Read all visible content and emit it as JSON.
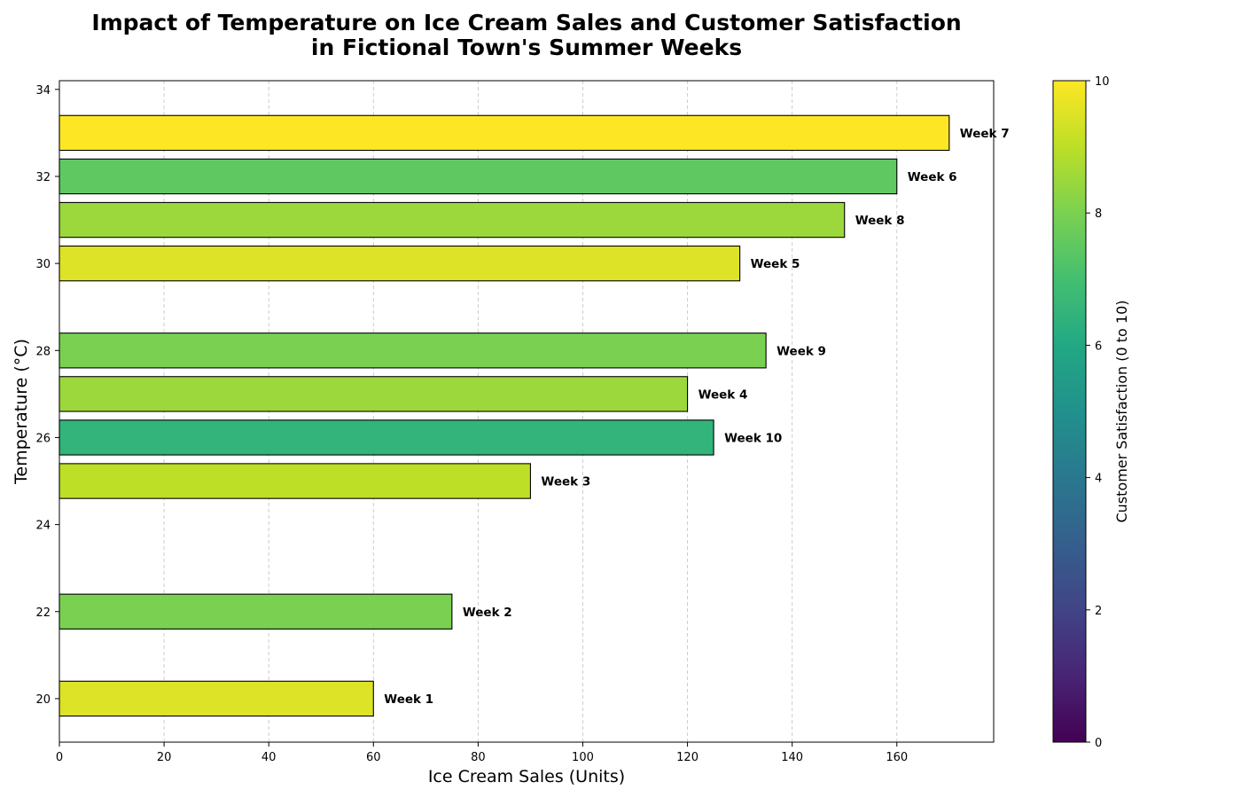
{
  "chart_data": {
    "type": "bar",
    "orientation": "horizontal",
    "title": [
      "Impact of Temperature on Ice Cream Sales and Customer Satisfaction",
      "in Fictional Town's Summer Weeks"
    ],
    "xlabel": "Ice Cream Sales (Units)",
    "ylabel": "Temperature (°C)",
    "xlim": [
      0,
      178.5
    ],
    "ylim": [
      19,
      34.2
    ],
    "xticks": [
      0,
      20,
      40,
      60,
      80,
      100,
      120,
      140,
      160
    ],
    "yticks": [
      20,
      22,
      24,
      26,
      28,
      30,
      32,
      34
    ],
    "grid": "x-dashed",
    "colorbar": {
      "label": "Customer Satisfaction (0 to 10)",
      "range": [
        0,
        10
      ],
      "ticks": [
        0,
        2,
        4,
        6,
        8,
        10
      ],
      "colormap": "viridis"
    },
    "bars": [
      {
        "label": "Week 1",
        "temperature": 20,
        "sales": 60,
        "satisfaction": 9.5
      },
      {
        "label": "Week 2",
        "temperature": 22,
        "sales": 75,
        "satisfaction": 8
      },
      {
        "label": "Week 3",
        "temperature": 25,
        "sales": 90,
        "satisfaction": 9
      },
      {
        "label": "Week 10",
        "temperature": 26,
        "sales": 125,
        "satisfaction": 6.5
      },
      {
        "label": "Week 4",
        "temperature": 27,
        "sales": 120,
        "satisfaction": 8.5
      },
      {
        "label": "Week 9",
        "temperature": 28,
        "sales": 135,
        "satisfaction": 8
      },
      {
        "label": "Week 5",
        "temperature": 30,
        "sales": 130,
        "satisfaction": 9.5
      },
      {
        "label": "Week 8",
        "temperature": 31,
        "sales": 150,
        "satisfaction": 8.5
      },
      {
        "label": "Week 6",
        "temperature": 32,
        "sales": 160,
        "satisfaction": 7.5
      },
      {
        "label": "Week 7",
        "temperature": 33,
        "sales": 170,
        "satisfaction": 10
      }
    ]
  }
}
